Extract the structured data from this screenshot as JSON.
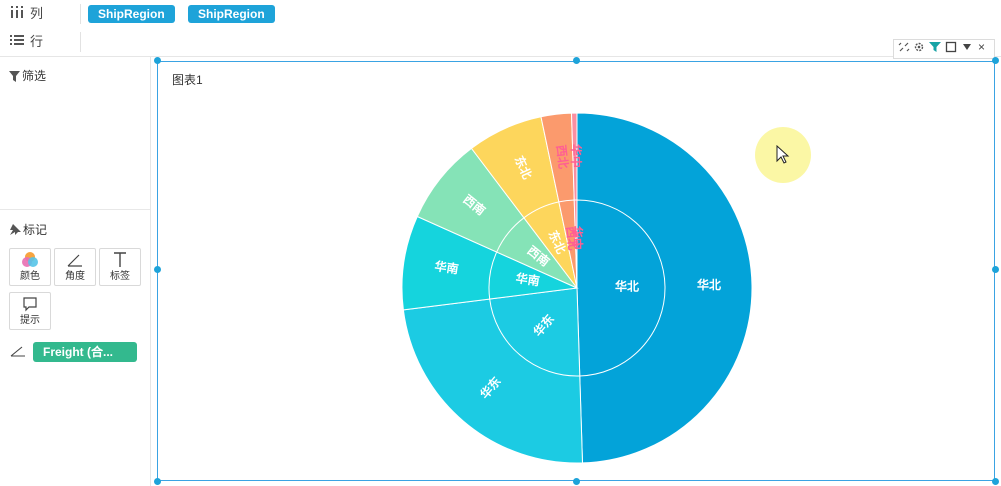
{
  "columns_shelf": {
    "label": "列",
    "pills": [
      "ShipRegion",
      "ShipRegion"
    ]
  },
  "rows_shelf": {
    "label": "行"
  },
  "filter_section": {
    "title": "筛选"
  },
  "marks_section": {
    "title": "标记",
    "buttons": {
      "color": "颜色",
      "angle": "角度",
      "label": "标签",
      "tooltip": "提示"
    },
    "angle_field": "Freight (合..."
  },
  "chart": {
    "title": "图表1"
  },
  "chart_data": {
    "type": "pie",
    "subtype": "nested-donut",
    "outer_ring": {
      "categories": [
        "华北",
        "华东",
        "华南",
        "西南",
        "东北",
        "西北",
        "华中"
      ],
      "values": [
        49.5,
        23.5,
        8.7,
        8.0,
        7.0,
        2.8,
        0.5
      ]
    },
    "inner_ring": {
      "categories": [
        "华北",
        "华东",
        "华南",
        "西南",
        "东北",
        "西北",
        "华中"
      ],
      "values": [
        49.5,
        23.5,
        8.7,
        8.0,
        7.0,
        2.8,
        0.5
      ]
    },
    "colors": [
      "#03a3d9",
      "#1ccbe3",
      "#15d4dd",
      "#85e3b7",
      "#fdd65c",
      "#fb9a6d",
      "#fa8fa1"
    ]
  }
}
